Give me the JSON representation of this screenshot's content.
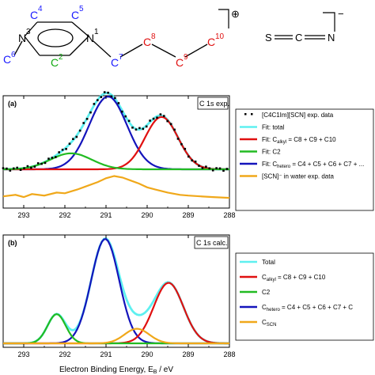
{
  "molecule": {
    "cation_atoms": [
      {
        "id": "c4",
        "label": "C",
        "sup": "4",
        "color": "#1a1aff"
      },
      {
        "id": "c5",
        "label": "C",
        "sup": "5",
        "color": "#1a1aff"
      },
      {
        "id": "n3",
        "label": "N",
        "sup": "3",
        "color": "#000000"
      },
      {
        "id": "n1",
        "label": "N",
        "sup": "1",
        "color": "#000000"
      },
      {
        "id": "c2",
        "label": "C",
        "sup": "2",
        "color": "#11aa11"
      },
      {
        "id": "c6",
        "label": "C",
        "sup": "6",
        "color": "#1a1aff"
      },
      {
        "id": "c7",
        "label": "C",
        "sup": "7",
        "color": "#1a1aff"
      },
      {
        "id": "c8",
        "label": "C",
        "sup": "8",
        "color": "#e01010"
      },
      {
        "id": "c9",
        "label": "C",
        "sup": "9",
        "color": "#e01010"
      },
      {
        "id": "c10",
        "label": "C",
        "sup": "10",
        "color": "#e01010"
      }
    ],
    "cation_charge": "⊕",
    "anion_atoms": [
      "S",
      "C",
      "N"
    ],
    "anion_charge": "−"
  },
  "chart_data": [
    {
      "type": "line",
      "panel_label": "(a)",
      "title": "C 1s exp.",
      "xlim": [
        293.5,
        288
      ],
      "xticks": [
        293,
        292,
        291,
        290,
        289,
        288
      ],
      "grid": false,
      "legend_position": "right",
      "legend": [
        {
          "key": "exp",
          "text": "[C4C1Im][SCN] exp. data",
          "color": "#000000",
          "style": "dots"
        },
        {
          "key": "total",
          "text": "Fit: total",
          "color": "#5ef0f0",
          "style": "line"
        },
        {
          "key": "alkyl",
          "text": "Fit: C",
          "sub": "alkyl",
          "rest": " = C8 + C9 + C10",
          "color": "#e01010",
          "style": "line"
        },
        {
          "key": "c2",
          "text": "Fit: C2",
          "color": "#22bb22",
          "style": "line"
        },
        {
          "key": "hetero",
          "text": "Fit: C",
          "sub": "hetero",
          "rest": " = C4 + C5 + C6 + C7 + ...",
          "color": "#1414bb",
          "style": "line"
        },
        {
          "key": "water",
          "text": "[SCN]⁻ in water exp. data",
          "color": "#f0a81a",
          "style": "line"
        }
      ],
      "series": [
        {
          "name": "Fit: Chetero",
          "color": "#1414bb",
          "shape": "gauss",
          "center": 290.95,
          "height": 1.0,
          "sigma": 0.46
        },
        {
          "name": "Fit: Calkyl",
          "color": "#e01010",
          "shape": "gauss",
          "center": 289.65,
          "height": 0.72,
          "sigma": 0.4
        },
        {
          "name": "Fit: C2",
          "color": "#22bb22",
          "shape": "gauss",
          "center": 291.85,
          "height": 0.22,
          "sigma": 0.5
        },
        {
          "name": "[SCN]- in water exp. data",
          "color": "#f0a81a",
          "shape": "data",
          "x": [
            293.5,
            293.2,
            293.0,
            292.8,
            292.5,
            292.2,
            292.0,
            291.7,
            291.5,
            291.2,
            291.0,
            290.8,
            290.6,
            290.4,
            290.2,
            290.0,
            289.8,
            289.5,
            289.2,
            289.0,
            288.7,
            288.4,
            288.0
          ],
          "y": [
            0.03,
            0.05,
            0.02,
            0.06,
            0.04,
            0.08,
            0.07,
            0.12,
            0.16,
            0.22,
            0.27,
            0.3,
            0.28,
            0.24,
            0.2,
            0.15,
            0.12,
            0.08,
            0.05,
            0.04,
            0.03,
            0.02,
            0.01
          ]
        }
      ]
    },
    {
      "type": "line",
      "panel_label": "(b)",
      "title": "C 1s calc.",
      "xlim": [
        293.5,
        288
      ],
      "xticks": [
        293,
        292,
        291,
        290,
        289,
        288
      ],
      "xlabel": "Electron Binding Energy, E",
      "xlabel_sub": "B",
      "xlabel_unit": " / eV",
      "grid": false,
      "legend_position": "right",
      "legend": [
        {
          "key": "total",
          "text": "Total",
          "color": "#5ef0f0",
          "style": "line"
        },
        {
          "key": "alkyl",
          "text": "C",
          "sub": "alkyl",
          "rest": " = C8 + C9 + C10",
          "color": "#e01010",
          "style": "line"
        },
        {
          "key": "c2",
          "text": "C2",
          "color": "#22bb22",
          "style": "line"
        },
        {
          "key": "hetero",
          "text": "C",
          "sub": "hetero",
          "rest": " = C4 + C5 + C6 + C7 + C",
          "color": "#1414bb",
          "style": "line"
        },
        {
          "key": "scn",
          "text": "C",
          "sub": "SCN",
          "rest": "",
          "color": "#f0a81a",
          "style": "line"
        }
      ],
      "series": [
        {
          "name": "Chetero",
          "color": "#1414bb",
          "shape": "gauss",
          "center": 291.02,
          "height": 1.0,
          "sigma": 0.34
        },
        {
          "name": "Calkyl",
          "color": "#e01010",
          "shape": "gauss",
          "center": 289.48,
          "height": 0.58,
          "sigma": 0.36
        },
        {
          "name": "C2",
          "color": "#22bb22",
          "shape": "gauss",
          "center": 292.2,
          "height": 0.28,
          "sigma": 0.22
        },
        {
          "name": "CSCN",
          "color": "#f0a81a",
          "shape": "gauss",
          "center": 290.25,
          "height": 0.14,
          "sigma": 0.3
        }
      ]
    }
  ]
}
